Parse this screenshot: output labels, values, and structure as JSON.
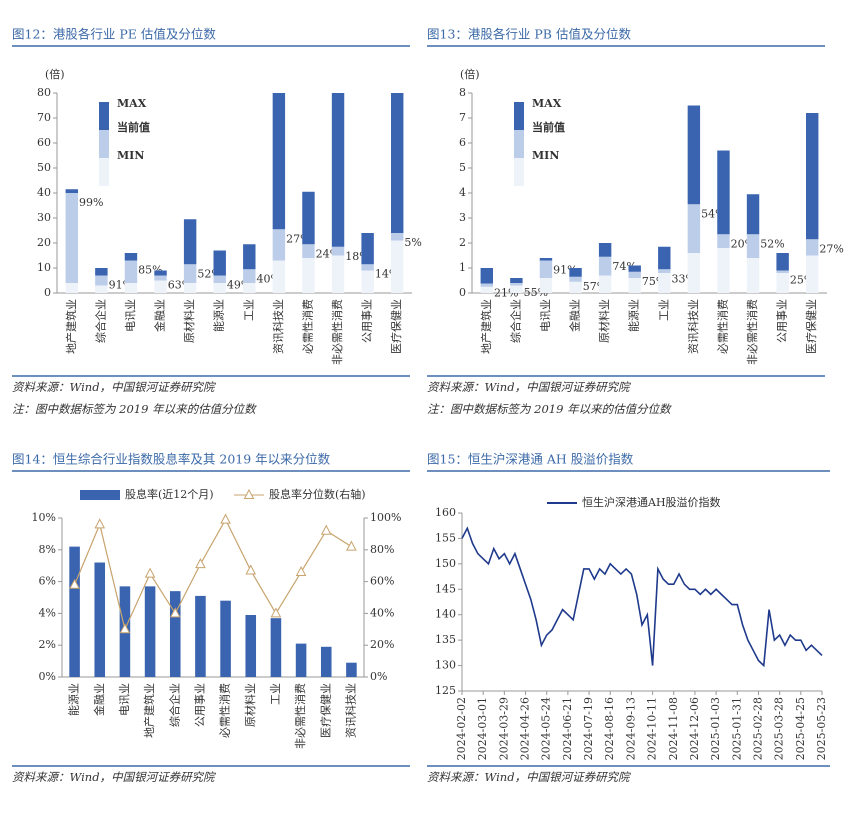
{
  "chart_data": [
    {
      "type": "range",
      "title": "图12：港股各行业 PE 估值及分位数",
      "ylabel": "(倍)",
      "categories": [
        "地产建筑业",
        "综合企业",
        "电讯业",
        "金融业",
        "原材料业",
        "能源业",
        "工业",
        "资讯科技业",
        "必需性消费",
        "非必需性消费",
        "公用事业",
        "医疗保健业"
      ],
      "series": [
        {
          "name": "MAX",
          "color": "#3a64b0",
          "values": [
            41.5,
            10,
            16,
            9,
            29.5,
            17,
            19.5,
            80,
            40.5,
            80,
            24,
            80
          ]
        },
        {
          "name": "当前值",
          "color": "#bccdea",
          "values": [
            40,
            7,
            13,
            7,
            11.5,
            7,
            9.5,
            25.5,
            19.5,
            18.5,
            11.5,
            24
          ]
        },
        {
          "name": "MIN",
          "color": "#eef2f9",
          "values": [
            4,
            3,
            4,
            5,
            4,
            4,
            4,
            13,
            14,
            15,
            9,
            21
          ]
        }
      ],
      "percentiles": {
        "values": [
          99,
          91,
          85,
          63,
          52,
          49,
          40,
          27,
          24,
          18,
          14,
          5
        ],
        "value_labels": [
          "99%",
          "91%",
          "85%",
          "63%",
          "52%",
          "49%",
          "40%",
          "27%",
          "24%",
          "18%",
          "14%",
          "5%"
        ]
      },
      "ylim": [
        0,
        80
      ],
      "yticks": [
        0,
        10,
        20,
        30,
        40,
        50,
        60,
        70,
        80
      ],
      "grid": false,
      "source": "资料来源：Wind，中国银河证券研究院",
      "note": "注：图中数据标签为 2019 年以来的估值分位数"
    },
    {
      "type": "range",
      "title": "图13：港股各行业 PB 估值及分位数",
      "ylabel": "(倍)",
      "categories": [
        "地产建筑业",
        "综合企业",
        "电讯业",
        "金融业",
        "原材料业",
        "能源业",
        "工业",
        "资讯科技业",
        "必需性消费",
        "非必需性消费",
        "公用事业",
        "医疗保健业"
      ],
      "series": [
        {
          "name": "MAX",
          "color": "#3a64b0",
          "values": [
            1.0,
            0.6,
            1.4,
            1.0,
            2.0,
            1.1,
            1.85,
            7.5,
            5.7,
            3.95,
            1.6,
            7.2
          ]
        },
        {
          "name": "当前值",
          "color": "#bccdea",
          "values": [
            0.38,
            0.4,
            1.3,
            0.65,
            1.45,
            0.85,
            0.95,
            3.55,
            2.35,
            2.35,
            0.9,
            2.15
          ]
        },
        {
          "name": "MIN",
          "color": "#eef2f9",
          "values": [
            0.25,
            0.3,
            0.6,
            0.45,
            0.7,
            0.6,
            0.8,
            1.6,
            1.8,
            1.4,
            0.8,
            1.5
          ]
        }
      ],
      "percentiles": {
        "values": [
          21,
          55,
          91,
          57,
          74,
          75,
          33,
          54,
          20,
          52,
          25,
          27
        ],
        "value_labels": [
          "21%",
          "55%",
          "91%",
          "57%",
          "74%",
          "75%",
          "33%",
          "54%",
          "20%",
          "52%",
          "25%",
          "27%"
        ]
      },
      "ylim": [
        0,
        8
      ],
      "yticks": [
        0,
        1,
        2,
        3,
        4,
        5,
        6,
        7,
        8
      ],
      "grid": false,
      "source": "资料来源：Wind，中国银河证券研究院",
      "note": "注：图中数据标签为 2019 年以来的估值分位数"
    },
    {
      "type": "combo",
      "title": "图14：恒生综合行业指数股息率及其 2019 年以来分位数",
      "categories": [
        "能源业",
        "金融业",
        "电讯业",
        "地产建筑业",
        "综合企业",
        "公用事业",
        "必需性消费",
        "原材料业",
        "工业",
        "非必需性消费",
        "医疗保健业",
        "资讯科技业"
      ],
      "series": [
        {
          "name": "股息率(近12个月)",
          "color": "#3a64b0",
          "values": [
            8.2,
            7.2,
            5.7,
            5.7,
            5.4,
            5.1,
            4.8,
            3.9,
            3.7,
            2.1,
            1.9,
            0.9
          ]
        },
        {
          "name": "股息率分位数(右轴)",
          "color": "#c8a46e",
          "axis": "y2",
          "values": [
            58,
            96,
            30,
            65,
            40,
            71,
            99,
            67,
            40,
            66,
            92,
            82
          ]
        }
      ],
      "ylim": [
        0,
        10
      ],
      "yticks": [
        {
          "value": 0,
          "label": "0%"
        },
        {
          "value": 2,
          "label": "2%"
        },
        {
          "value": 4,
          "label": "4%"
        },
        {
          "value": 6,
          "label": "6%"
        },
        {
          "value": 8,
          "label": "8%"
        },
        {
          "value": 10,
          "label": "10%"
        }
      ],
      "y2lim": [
        0,
        100
      ],
      "y2ticks": [
        {
          "value": 0,
          "label": "0%"
        },
        {
          "value": 20,
          "label": "20%"
        },
        {
          "value": 40,
          "label": "40%"
        },
        {
          "value": 60,
          "label": "60%"
        },
        {
          "value": 80,
          "label": "80%"
        },
        {
          "value": 100,
          "label": "100%"
        }
      ],
      "legend": "top",
      "source": "资料来源：Wind，中国银河证券研究院"
    },
    {
      "type": "line",
      "title": "图15：恒生沪深港通 AH 股溢价指数",
      "x": [
        "2024-02-02",
        "2024-02-09",
        "2024-02-16",
        "2024-02-23",
        "2024-03-01",
        "2024-03-08",
        "2024-03-15",
        "2024-03-22",
        "2024-03-29",
        "2024-04-05",
        "2024-04-12",
        "2024-04-19",
        "2024-04-26",
        "2024-05-03",
        "2024-05-10",
        "2024-05-17",
        "2024-05-24",
        "2024-05-31",
        "2024-06-07",
        "2024-06-14",
        "2024-06-21",
        "2024-06-28",
        "2024-07-05",
        "2024-07-12",
        "2024-07-19",
        "2024-07-26",
        "2024-08-02",
        "2024-08-09",
        "2024-08-16",
        "2024-08-23",
        "2024-08-30",
        "2024-09-06",
        "2024-09-13",
        "2024-09-20",
        "2024-09-27",
        "2024-10-04",
        "2024-10-11",
        "2024-10-18",
        "2024-10-25",
        "2024-11-01",
        "2024-11-08",
        "2024-11-15",
        "2024-11-22",
        "2024-11-29",
        "2024-12-06",
        "2024-12-13",
        "2024-12-20",
        "2024-12-27",
        "2025-01-03",
        "2025-01-10",
        "2025-01-17",
        "2025-01-24",
        "2025-01-31",
        "2025-02-07",
        "2025-02-14",
        "2025-02-21",
        "2025-02-28",
        "2025-03-07",
        "2025-03-14",
        "2025-03-21",
        "2025-03-28",
        "2025-04-04",
        "2025-04-11",
        "2025-04-18",
        "2025-04-25",
        "2025-05-02",
        "2025-05-09",
        "2025-05-16",
        "2025-05-23"
      ],
      "series": [
        {
          "name": "恒生沪深港通AH股溢价指数",
          "color": "#1f3a8c",
          "values": [
            155,
            157,
            154,
            152,
            151,
            150,
            153,
            151,
            152,
            150,
            152,
            149,
            146,
            143,
            139,
            134,
            136,
            137,
            139,
            141,
            140,
            139,
            144,
            149,
            149,
            147,
            149,
            148,
            150,
            149,
            148,
            149,
            148,
            144,
            138,
            140,
            130,
            149,
            147,
            146,
            146,
            148,
            146,
            145,
            145,
            144,
            145,
            144,
            145,
            144,
            143,
            142,
            142,
            138,
            135,
            133,
            131,
            130,
            141,
            135,
            136,
            134,
            136,
            135,
            135,
            133,
            134,
            133,
            132
          ]
        }
      ],
      "xlim": [
        "2024-02-02",
        "2025-05-23"
      ],
      "xticks": [
        "2024-02-02",
        "2024-03-01",
        "2024-03-29",
        "2024-04-26",
        "2024-05-24",
        "2024-06-21",
        "2024-07-19",
        "2024-08-16",
        "2024-09-13",
        "2024-10-11",
        "2024-11-08",
        "2024-12-06",
        "2025-01-03",
        "2025-01-31",
        "2025-02-28",
        "2025-03-28",
        "2025-04-25",
        "2025-05-23"
      ],
      "ylim": [
        125,
        160
      ],
      "yticks": [
        125,
        130,
        135,
        140,
        145,
        150,
        155,
        160
      ],
      "legend": "top",
      "source": "资料来源：Wind，中国银河证券研究院"
    }
  ]
}
